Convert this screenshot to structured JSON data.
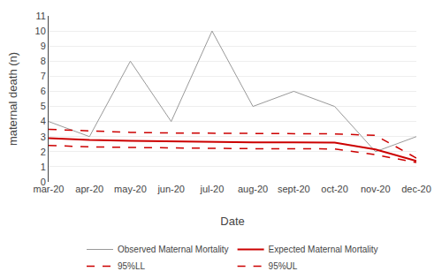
{
  "chart_data": {
    "type": "line",
    "categories": [
      "mar-20",
      "apr-20",
      "may-20",
      "jun-20",
      "jul-20",
      "aug-20",
      "sept-20",
      "oct-20",
      "nov-20",
      "dec-20"
    ],
    "series": [
      {
        "name": "Observed Maternal Mortality",
        "color": "#999999",
        "line_style": "solid",
        "values": [
          4,
          3,
          8,
          4,
          10,
          5,
          6,
          5,
          2,
          3
        ]
      },
      {
        "name": "Expected Maternal Mortality",
        "color": "#cc0000",
        "line_style": "solid",
        "values": [
          2.9,
          2.78,
          2.72,
          2.68,
          2.65,
          2.62,
          2.62,
          2.6,
          2.15,
          1.38
        ]
      },
      {
        "name": "95%LL",
        "color": "#cc0000",
        "line_style": "dashed",
        "values": [
          2.42,
          2.32,
          2.28,
          2.24,
          2.22,
          2.2,
          2.2,
          2.18,
          1.8,
          1.28
        ]
      },
      {
        "name": "95%UL",
        "color": "#cc0000",
        "line_style": "dashed",
        "values": [
          3.48,
          3.38,
          3.28,
          3.24,
          3.22,
          3.2,
          3.2,
          3.18,
          3.08,
          1.58
        ]
      }
    ],
    "xlabel": "Date",
    "ylabel": "maternal death (n)",
    "ylim": [
      0,
      11
    ],
    "yticks": [
      0,
      1,
      2,
      3,
      4,
      5,
      6,
      7,
      8,
      9,
      10,
      11
    ],
    "grid": true,
    "legend": "bottom"
  }
}
